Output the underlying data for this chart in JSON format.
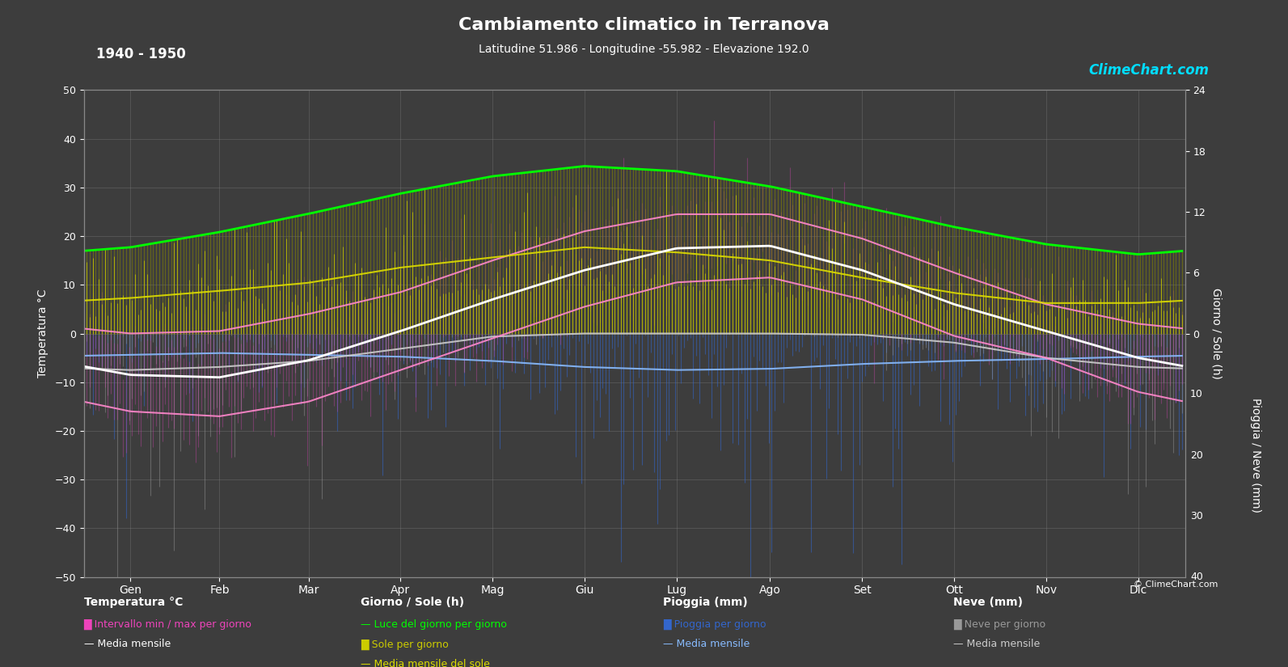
{
  "title": "Cambiamento climatico in Terranova",
  "subtitle": "Latitudine 51.986 - Longitudine -55.982 - Elevazione 192.0",
  "period": "1940 - 1950",
  "background_color": "#3d3d3d",
  "plot_bg_color": "#3d3d3d",
  "months": [
    "Gen",
    "Feb",
    "Mar",
    "Apr",
    "Mag",
    "Giu",
    "Lug",
    "Ago",
    "Set",
    "Ott",
    "Nov",
    "Dic"
  ],
  "days_per_month": [
    31,
    28,
    31,
    30,
    31,
    30,
    31,
    31,
    30,
    31,
    30,
    31
  ],
  "temp_ylim": [
    -50,
    50
  ],
  "left_yticks": [
    -50,
    -40,
    -30,
    -20,
    -10,
    0,
    10,
    20,
    30,
    40,
    50
  ],
  "right_sun_yticks": [
    0,
    6,
    12,
    18,
    24
  ],
  "right_rain_yticks": [
    0,
    10,
    20,
    30,
    40
  ],
  "temp_mean": [
    -8.5,
    -9.0,
    -5.5,
    0.5,
    7.0,
    13.0,
    17.5,
    18.0,
    13.0,
    6.0,
    0.5,
    -5.0
  ],
  "temp_max_mean": [
    0.0,
    0.5,
    4.0,
    8.5,
    15.0,
    21.0,
    24.5,
    24.5,
    19.5,
    12.5,
    6.0,
    2.0
  ],
  "temp_min_mean": [
    -16.0,
    -17.0,
    -14.0,
    -7.5,
    -1.0,
    5.5,
    10.5,
    11.5,
    7.0,
    -0.5,
    -5.0,
    -12.0
  ],
  "daylight": [
    8.5,
    10.0,
    11.8,
    13.8,
    15.5,
    16.5,
    16.0,
    14.5,
    12.5,
    10.5,
    8.8,
    7.8
  ],
  "sunshine": [
    3.5,
    4.2,
    5.0,
    6.5,
    7.5,
    8.5,
    8.0,
    7.2,
    5.5,
    4.0,
    3.0,
    3.0
  ],
  "rain_mean": [
    3.5,
    3.2,
    3.5,
    3.8,
    4.5,
    5.5,
    6.0,
    5.8,
    5.0,
    4.5,
    4.2,
    3.8
  ],
  "snow_mean": [
    6.0,
    5.5,
    4.5,
    2.5,
    0.5,
    0.0,
    0.0,
    0.0,
    0.2,
    1.5,
    4.0,
    5.5
  ],
  "sun_scale": 3.0,
  "rain_scale": 1.0,
  "grid_color": "#888888",
  "text_color": "#ffffff",
  "temp_stripe_color": "#dd44bb",
  "daylight_color": "#00ff00",
  "sunshine_bar_color_top": "#cccc00",
  "sunshine_bar_color_bot": "#888800",
  "sunshine_mean_color": "#dddd00",
  "rain_bar_color": "#3366cc",
  "rain_mean_color": "#88bbff",
  "snow_bar_color": "#999999",
  "snow_mean_color": "#cccccc",
  "temp_mean_color": "#ffffff",
  "temp_band_color": "#cc55bb"
}
